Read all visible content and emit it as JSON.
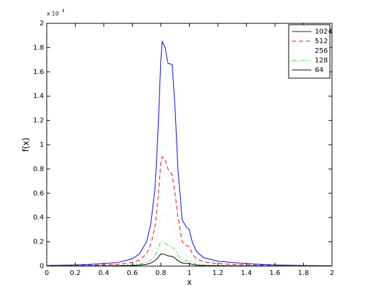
{
  "chart_data": {
    "type": "line",
    "xlabel": "x",
    "ylabel": "f(x)",
    "y_exponent": {
      "base": "x 10",
      "power": "4"
    },
    "xlim": [
      0,
      2
    ],
    "ylim": [
      0,
      2
    ],
    "xticks": [
      0,
      0.2,
      0.4,
      0.6,
      0.8,
      1,
      1.2,
      1.4,
      1.6,
      1.8,
      2
    ],
    "yticks": [
      0,
      0.2,
      0.4,
      0.6,
      0.8,
      1,
      1.2,
      1.4,
      1.6,
      1.8,
      2
    ],
    "grid": false,
    "legend": "upper right",
    "x": [
      0,
      0.2,
      0.4,
      0.5,
      0.6,
      0.65,
      0.7,
      0.73,
      0.76,
      0.78,
      0.8,
      0.81,
      0.83,
      0.85,
      0.88,
      0.9,
      0.92,
      0.95,
      0.98,
      1.0,
      1.02,
      1.05,
      1.1,
      1.2,
      1.4,
      1.6,
      1.8,
      2.0
    ],
    "series": [
      {
        "name": "1024",
        "color": "#0000ff",
        "dash": "solid",
        "values": [
          0.005,
          0.01,
          0.02,
          0.03,
          0.06,
          0.1,
          0.2,
          0.35,
          0.65,
          1.1,
          1.7,
          1.85,
          1.8,
          1.67,
          1.66,
          1.3,
          0.8,
          0.38,
          0.32,
          0.3,
          0.2,
          0.12,
          0.07,
          0.04,
          0.02,
          0.01,
          0.005,
          0.003
        ]
      },
      {
        "name": "512",
        "color": "#ff0000",
        "dash": "dashed",
        "values": [
          0.003,
          0.005,
          0.01,
          0.015,
          0.03,
          0.05,
          0.1,
          0.18,
          0.33,
          0.55,
          0.85,
          0.9,
          0.88,
          0.8,
          0.75,
          0.6,
          0.4,
          0.2,
          0.17,
          0.16,
          0.1,
          0.06,
          0.035,
          0.02,
          0.01,
          0.005,
          0.003,
          0.002
        ]
      },
      {
        "name": "256",
        "color": "#d8d8ff",
        "dash": "dotted",
        "values": [
          0.002,
          0.003,
          0.005,
          0.008,
          0.015,
          0.025,
          0.05,
          0.09,
          0.17,
          0.28,
          0.42,
          0.45,
          0.44,
          0.4,
          0.37,
          0.3,
          0.2,
          0.1,
          0.085,
          0.08,
          0.05,
          0.03,
          0.017,
          0.01,
          0.005,
          0.003,
          0.002,
          0.001
        ]
      },
      {
        "name": "128",
        "color": "#00ff00",
        "dash": "dashdot",
        "values": [
          0.001,
          0.002,
          0.003,
          0.005,
          0.01,
          0.015,
          0.03,
          0.05,
          0.09,
          0.14,
          0.2,
          0.2,
          0.19,
          0.17,
          0.16,
          0.13,
          0.09,
          0.05,
          0.045,
          0.04,
          0.03,
          0.015,
          0.008,
          0.005,
          0.003,
          0.002,
          0.001,
          0.001
        ]
      },
      {
        "name": "64",
        "color": "#000000",
        "dash": "solid",
        "values": [
          0.0005,
          0.001,
          0.0015,
          0.003,
          0.005,
          0.008,
          0.015,
          0.025,
          0.045,
          0.07,
          0.1,
          0.1,
          0.095,
          0.085,
          0.08,
          0.065,
          0.045,
          0.025,
          0.022,
          0.02,
          0.015,
          0.008,
          0.004,
          0.003,
          0.0015,
          0.001,
          0.0005,
          0.0005
        ]
      }
    ]
  }
}
